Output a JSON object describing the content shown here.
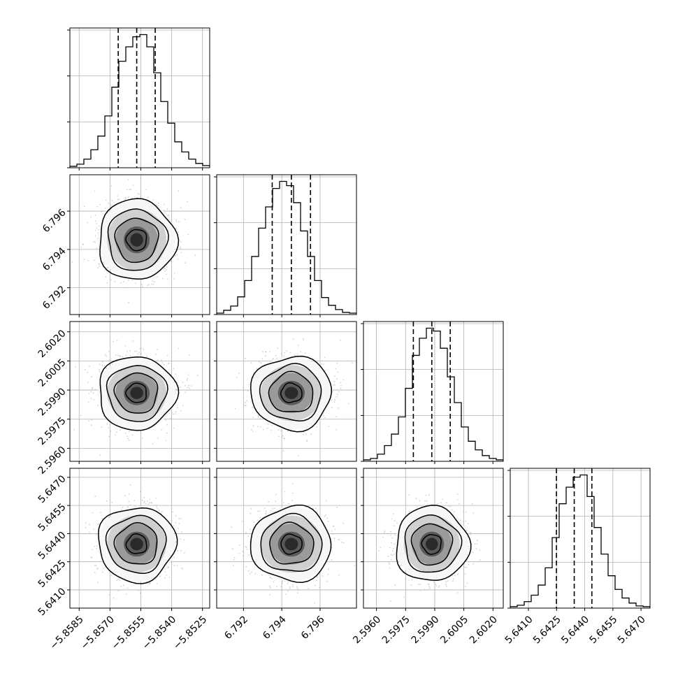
{
  "chart_data": {
    "type": "corner",
    "parameters": [
      {
        "range": [
          -5.85895,
          -5.85215
        ],
        "ticks": [
          -5.8585,
          -5.857,
          -5.8555,
          -5.854,
          -5.8525
        ],
        "tick_labels": [
          "−5.8585",
          "−5.8570",
          "−5.8555",
          "−5.8540",
          "−5.8525"
        ],
        "quantiles": [
          -5.8566,
          -5.8557,
          -5.8548
        ],
        "hist": [
          2,
          5,
          12,
          25,
          44,
          72,
          112,
          148,
          168,
          182,
          185,
          168,
          132,
          92,
          62,
          36,
          22,
          12,
          6,
          3
        ]
      },
      {
        "range": [
          6.7906,
          6.7979
        ],
        "ticks": [
          6.792,
          6.794,
          6.796
        ],
        "tick_labels": [
          "6.792",
          "6.794",
          "6.796"
        ],
        "quantiles": [
          6.7935,
          6.7945,
          6.7955
        ],
        "hist": [
          2,
          6,
          12,
          25,
          48,
          82,
          122,
          152,
          178,
          188,
          182,
          158,
          118,
          82,
          48,
          24,
          13,
          7,
          3,
          2
        ]
      },
      {
        "range": [
          2.59533,
          2.60253
        ],
        "ticks": [
          2.596,
          2.5975,
          2.599,
          2.6005,
          2.602
        ],
        "tick_labels": [
          "2.5960",
          "2.5975",
          "2.5990",
          "2.6005",
          "2.6020"
        ],
        "quantiles": [
          2.5979,
          2.59885,
          2.5998
        ],
        "hist": [
          2,
          4,
          10,
          22,
          38,
          62,
          102,
          148,
          172,
          186,
          182,
          158,
          118,
          82,
          48,
          28,
          16,
          8,
          4,
          2
        ]
      },
      {
        "range": [
          5.64003,
          5.64748
        ],
        "ticks": [
          5.641,
          5.6425,
          5.644,
          5.6455,
          5.647
        ],
        "tick_labels": [
          "5.6410",
          "5.6425",
          "5.6440",
          "5.6455",
          "5.6470"
        ],
        "quantiles": [
          5.64249,
          5.64344,
          5.64438
        ],
        "hist": [
          2,
          4,
          9,
          18,
          32,
          56,
          98,
          145,
          168,
          182,
          185,
          155,
          112,
          75,
          45,
          26,
          14,
          7,
          3,
          2
        ]
      }
    ],
    "centers": [
      -5.8557,
      6.7945,
      2.59885,
      5.64344
    ],
    "sigmas": [
      0.0009,
      0.001,
      0.0009,
      0.00095
    ],
    "grid": true,
    "quantile_lines": "dashed",
    "contours": "filled density with 4 black contour levels",
    "colors": {
      "hist_line": "#000000",
      "points": "#bdbdbd",
      "density": "#000000",
      "grid": "#b0b0b0"
    }
  }
}
